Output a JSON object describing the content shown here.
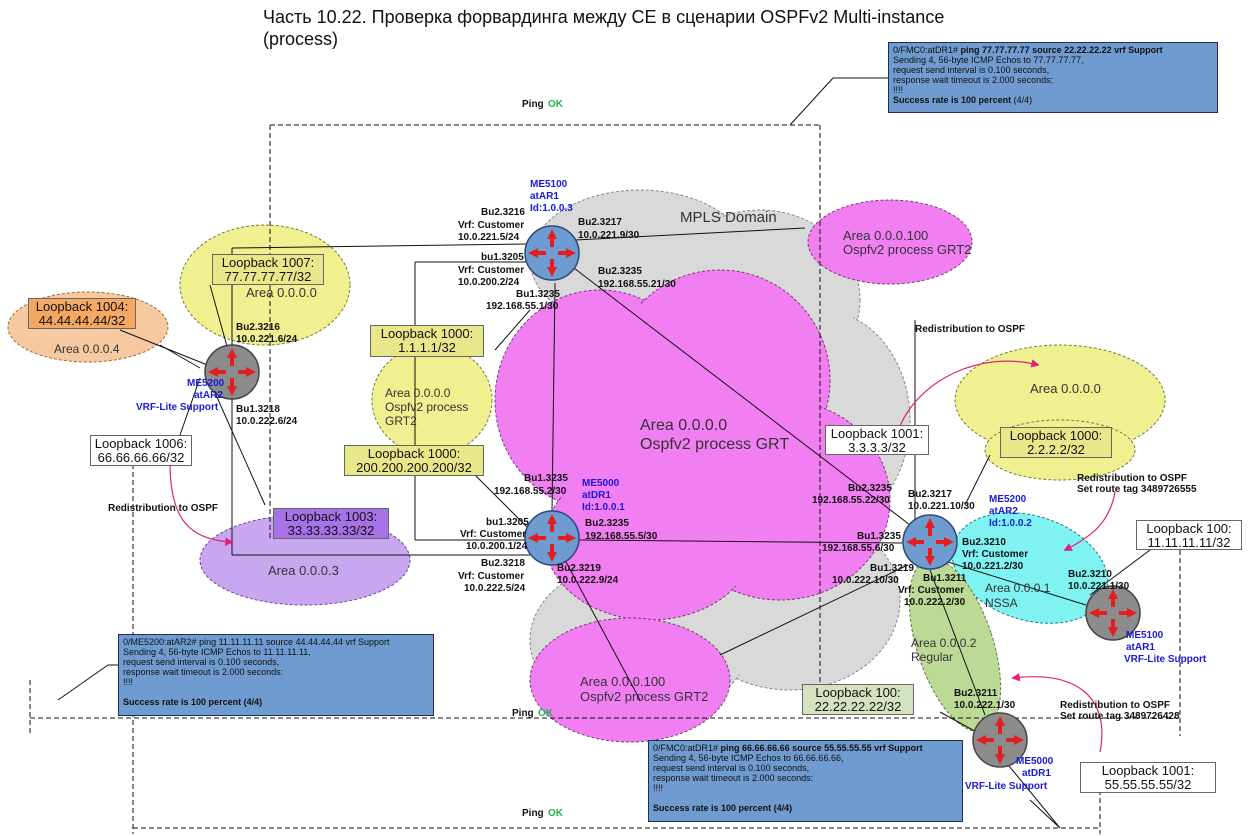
{
  "title": "Часть 10.22. Проверка форвардинга между CE в сценарии OSPFv2 Multi-instance (process)",
  "colors": {
    "mpls_cloud": "#d9d9d9",
    "pink_cloud": "#f27ff2",
    "yellow_cloud": "#f0f090",
    "orange_cloud": "#f6c9a0",
    "purple_cloud": "#c9a6f0",
    "cyan_cloud": "#7ff2f2",
    "green_cloud": "#bcd995",
    "router_core": "#6f9cd0",
    "router_ce": "#8c8c8c",
    "console_bg": "#6f9bd0",
    "ping_ok": "#22b14c",
    "redistribution_arrow": "#e0207a"
  },
  "clouds": {
    "mpls": "MPLS Domain",
    "grt_core": {
      "line1": "Area 0.0.0.0",
      "line2": "Ospfv2 process GRT"
    },
    "grt2_top": {
      "line1": "Area 0.0.0.100",
      "line2": "Ospfv2 process GRT2"
    },
    "grt2_bottom": {
      "line1": "Area 0.0.0.100",
      "line2": "Ospfv2 process GRT2"
    },
    "area0_left": "Area 0.0.0.0",
    "area0_mid": {
      "line1": "Area 0.0.0.0",
      "line2": "Ospfv2 process",
      "line3": "GRT2"
    },
    "area4": "Area 0.0.0.4",
    "area3": "Area 0.0.0.3",
    "area0_right": "Area 0.0.0.0",
    "area1_nssa": {
      "line1": "Area 0.0.0.1",
      "line2": "NSSA"
    },
    "area2_regular": {
      "line1": "Area 0.0.0.2",
      "line2": "Regular"
    }
  },
  "routers": {
    "me5100_atar1": {
      "l1": "ME5100",
      "l2": "atAR1",
      "l3": "Id:1.0.0.3"
    },
    "me5000_atdr1": {
      "l1": "ME5000",
      "l2": "atDR1",
      "l3": "Id:1.0.0.1"
    },
    "me5200_atar2": {
      "l1": "ME5200",
      "l2": "atAR2",
      "l3": "Id:1.0.0.2"
    },
    "me5200_vrf": {
      "l1": "ME5200",
      "l2": "atAR2",
      "l3": "VRF-Lite Support"
    },
    "me5100_vrf": {
      "l1": "ME5100",
      "l2": "atAR1",
      "l3": "VRF-Lite Support"
    },
    "me5000_vrf": {
      "l1": "ME5000",
      "l2": "atDR1",
      "l3": "VRF-Lite Support"
    }
  },
  "interfaces": {
    "ar1_bu23216": {
      "l1": "Bu2.3216",
      "l2": "Vrf: Customer",
      "l3": "10.0.221.5/24"
    },
    "ar1_bu23217": {
      "l1": "Bu2.3217",
      "l2": "10.0.221.9/30"
    },
    "ar1_bu13205": {
      "l1": "bu1.3205",
      "l2": "Vrf: Customer",
      "l3": "10.0.200.2/24"
    },
    "ar1_bu23235": {
      "l1": "Bu2.3235",
      "l2": "192.168.55.21/30"
    },
    "ar1_bu13235": {
      "l1": "Bu1.3235",
      "l2": "192.168.55.1/30"
    },
    "ce_bu23216": {
      "l1": "Bu2.3216",
      "l2": "10.0.221.6/24"
    },
    "ce_bu13218": {
      "l1": "Bu1.3218",
      "l2": "10.0.222.6/24"
    },
    "dr1_bu13235": {
      "l1": "Bu1.3235",
      "l2": "192.168.55.2/30"
    },
    "dr1_bu13205": {
      "l1": "bu1.3205",
      "l2": "Vrf: Customer",
      "l3": "10.0.200.1/24"
    },
    "dr1_bu23218": {
      "l1": "Bu2.3218",
      "l2": "Vrf: Customer",
      "l3": "10.0.222.5/24"
    },
    "dr1_bu23235": {
      "l1": "Bu2.3235",
      "l2": "192.168.55.5/30"
    },
    "dr1_bu23219": {
      "l1": "Bu2.3219",
      "l2": "10.0.222.9/24"
    },
    "ar2_bu23235": {
      "l1": "Bu2.3235",
      "l2": "192.168.55.22/30"
    },
    "ar2_bu23217": {
      "l1": "Bu2.3217",
      "l2": "10.0.221.10/30"
    },
    "ar2_bu13235": {
      "l1": "Bu1.3235",
      "l2": "192.168.55.6/30"
    },
    "ar2_bu23210": {
      "l1": "Bu2.3210",
      "l2": "Vrf: Customer",
      "l3": "10.0.221.2/30"
    },
    "ar2_bu13219": {
      "l1": "Bu1.3219",
      "l2": "10.0.222.10/30"
    },
    "ar2_bu13211": {
      "l1": "Bu1.3211",
      "l2": "Vrf: Customer",
      "l3": "10.0.222.2/30"
    },
    "ce1_bu23210": {
      "l1": "Bu2.3210",
      "l2": "10.0.221.1/30"
    },
    "ce2_bu23211": {
      "l1": "Bu2.3211",
      "l2": "10.0.222.1/30"
    }
  },
  "loopbacks": {
    "lb1007": {
      "l1": "Loopback 1007:",
      "l2": "77.77.77.77/32"
    },
    "lb1004": {
      "l1": "Loopback 1004:",
      "l2": "44.44.44.44/32"
    },
    "lb1000_a": {
      "l1": "Loopback 1000:",
      "l2": "1.1.1.1/32"
    },
    "lb1000_b": {
      "l1": "Loopback 1000:",
      "l2": "200.200.200.200/32"
    },
    "lb1006": {
      "l1": "Loopback 1006:",
      "l2": "66.66.66.66/32"
    },
    "lb1003": {
      "l1": "Loopback 1003:",
      "l2": "33.33.33.33/32"
    },
    "lb1001_a": {
      "l1": "Loopback 1001:",
      "l2": "3.3.3.3/32"
    },
    "lb1000_c": {
      "l1": "Loopback 1000:",
      "l2": "2.2.2.2/32"
    },
    "lb100_a": {
      "l1": "Loopback 100:",
      "l2": "11.11.11.11/32"
    },
    "lb100_b": {
      "l1": "Loopback 100:",
      "l2": "22.22.22.22/32"
    },
    "lb1001_b": {
      "l1": "Loopback 1001:",
      "l2": "55.55.55.55/32"
    }
  },
  "notes": {
    "redist_top": "Redistribution to OSPF",
    "redist_left": "Redistribution to OSPF",
    "redist_right": {
      "l1": "Redistribution to OSPF",
      "l2": "Set route tag 3489726555"
    },
    "redist_bottom": {
      "l1": "Redistribution to OSPF",
      "l2": "Set route tag 3489726428"
    }
  },
  "pings": {
    "top": {
      "label": "Ping",
      "status": "OK"
    },
    "mid": {
      "label": "Ping",
      "status": "OK"
    },
    "bottom": {
      "label": "Ping",
      "status": "OK"
    }
  },
  "consoles": {
    "top": {
      "prompt": "0/FMC0:atDR1#",
      "cmd": "ping 77.77.77.77 source 22.22.22.22  vrf Support",
      "line1": "Sending 4, 56-byte ICMP Echos to 77.77.77.77,",
      "line2": "request send interval is 0.100 seconds,",
      "line3": "response wait timeout is 2.000 seconds:",
      "line4": "!!!!",
      "result": "Success rate is 100 percent",
      "tail": "(4/4)"
    },
    "left": {
      "prompt": "0/ME5200:atAR2#",
      "cmd": "ping 11.11.11.11 source 44.44.44.44 vrf Support",
      "line1": "Sending 4, 56-byte ICMP Echos to 11.11.11.11,",
      "line2": "request send interval is 0.100 seconds,",
      "line3": "response wait timeout is 2.000 seconds:",
      "line4": "!!!!",
      "result": "Success rate is 100 percent (4/4)",
      "tail": ""
    },
    "bottom": {
      "prompt": "0/FMC0:atDR1#",
      "cmd": "ping 66.66.66.66  source 55.55.55.55  vrf Support",
      "line1": "Sending 4, 56-byte ICMP Echos to 66.66.66.66,",
      "line2": "request send interval is 0.100 seconds,",
      "line3": "response wait timeout is 2.000 seconds:",
      "line4": "!!!!",
      "result": "Success rate is 100 percent (4/4)",
      "tail": ""
    }
  }
}
